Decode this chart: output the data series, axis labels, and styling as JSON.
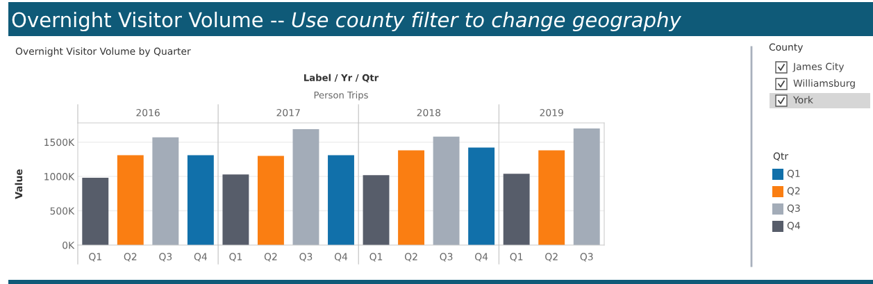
{
  "chart_data": [
    {
      "type": "other",
      "title": "Overnight Visitor Volume -- ",
      "subtitle": "Use county filter to change geography",
      "annotations": [
        "Overnight Visitor Volume by Quarter",
        "Label / Yr / Qtr",
        "Person Trips"
      ]
    },
    {
      "type": "bar",
      "title": "2016",
      "ylabel": "Value",
      "categories": [
        "Q1",
        "Q2",
        "Q3",
        "Q4"
      ],
      "values": [
        980000,
        1310000,
        1570000,
        1310000
      ],
      "colors": [
        "#575d6a",
        "#fa7e12",
        "#a3acb8",
        "#1170aa"
      ],
      "ylim": [
        0,
        1780000
      ],
      "yticks": [
        {
          "value": 0,
          "label": "0K"
        },
        {
          "value": 500000,
          "label": "500K"
        },
        {
          "value": 1000000,
          "label": "1000K"
        },
        {
          "value": 1500000,
          "label": "1500K"
        }
      ],
      "grid": "y",
      "legend": false
    },
    {
      "type": "bar",
      "title": "2017",
      "categories": [
        "Q1",
        "Q2",
        "Q3",
        "Q4"
      ],
      "values": [
        1030000,
        1300000,
        1690000,
        1310000
      ],
      "colors": [
        "#575d6a",
        "#fa7e12",
        "#a3acb8",
        "#1170aa"
      ],
      "ylim": [
        0,
        1780000
      ],
      "yticks": [
        {
          "value": 0,
          "label": null
        },
        {
          "value": 500000,
          "label": null
        },
        {
          "value": 1000000,
          "label": null
        },
        {
          "value": 1500000,
          "label": null
        }
      ],
      "grid": "y",
      "tick_labels": "x",
      "legend": false
    },
    {
      "type": "bar",
      "title": "2018",
      "categories": [
        "Q1",
        "Q2",
        "Q3",
        "Q4"
      ],
      "values": [
        1020000,
        1380000,
        1580000,
        1420000
      ],
      "colors": [
        "#575d6a",
        "#fa7e12",
        "#a3acb8",
        "#1170aa"
      ],
      "ylim": [
        0,
        1780000
      ],
      "yticks": [
        {
          "value": 0,
          "label": null
        },
        {
          "value": 500000,
          "label": null
        },
        {
          "value": 1000000,
          "label": null
        },
        {
          "value": 1500000,
          "label": null
        }
      ],
      "grid": "y",
      "tick_labels": "x",
      "legend": false
    },
    {
      "type": "bar",
      "title": "2019",
      "categories": [
        "Q1",
        "Q2",
        "Q3"
      ],
      "values": [
        1040000,
        1380000,
        1700000
      ],
      "colors": [
        "#575d6a",
        "#fa7e12",
        "#a3acb8"
      ],
      "ylim": [
        0,
        1780000
      ],
      "yticks": [
        {
          "value": 0,
          "label": null
        },
        {
          "value": 500000,
          "label": null
        },
        {
          "value": 1000000,
          "label": null
        },
        {
          "value": 1500000,
          "label": null
        }
      ],
      "grid": "y",
      "tick_labels": "x",
      "legend": false
    },
    {
      "type": "other",
      "title": "County",
      "categories": [
        "James City",
        "Williamsburg",
        "York"
      ]
    },
    {
      "type": "other",
      "legend_title": "Qtr",
      "categories": [
        "Q1",
        "Q2",
        "Q3",
        "Q4"
      ],
      "colors": [
        "#1170aa",
        "#fa7e12",
        "#a3acb8",
        "#575d6a"
      ]
    }
  ]
}
